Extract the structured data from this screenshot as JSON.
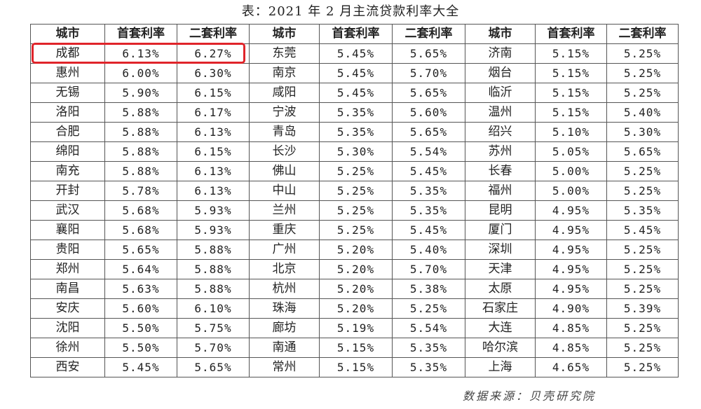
{
  "title": "表：2021 年 2 月主流贷款利率大全",
  "headers": [
    "城市",
    "首套利率",
    "二套利率",
    "城市",
    "首套利率",
    "二套利率",
    "城市",
    "首套利率",
    "二套利率"
  ],
  "rows": [
    [
      "成都",
      "6.13%",
      "6.27%",
      "东莞",
      "5.45%",
      "5.65%",
      "济南",
      "5.15%",
      "5.25%"
    ],
    [
      "惠州",
      "6.00%",
      "6.30%",
      "南京",
      "5.45%",
      "5.70%",
      "烟台",
      "5.15%",
      "5.25%"
    ],
    [
      "无锡",
      "5.90%",
      "6.15%",
      "咸阳",
      "5.45%",
      "5.65%",
      "临沂",
      "5.15%",
      "5.25%"
    ],
    [
      "洛阳",
      "5.88%",
      "6.17%",
      "宁波",
      "5.35%",
      "5.60%",
      "温州",
      "5.15%",
      "5.40%"
    ],
    [
      "合肥",
      "5.88%",
      "6.13%",
      "青岛",
      "5.35%",
      "5.65%",
      "绍兴",
      "5.10%",
      "5.30%"
    ],
    [
      "绵阳",
      "5.88%",
      "6.15%",
      "长沙",
      "5.30%",
      "5.54%",
      "苏州",
      "5.05%",
      "5.65%"
    ],
    [
      "南充",
      "5.88%",
      "6.13%",
      "佛山",
      "5.25%",
      "5.45%",
      "长春",
      "5.00%",
      "5.25%"
    ],
    [
      "开封",
      "5.78%",
      "6.13%",
      "中山",
      "5.25%",
      "5.35%",
      "福州",
      "5.00%",
      "5.25%"
    ],
    [
      "武汉",
      "5.68%",
      "5.93%",
      "兰州",
      "5.25%",
      "5.35%",
      "昆明",
      "4.95%",
      "5.35%"
    ],
    [
      "襄阳",
      "5.68%",
      "5.93%",
      "重庆",
      "5.25%",
      "5.45%",
      "厦门",
      "4.95%",
      "5.45%"
    ],
    [
      "贵阳",
      "5.65%",
      "5.88%",
      "广州",
      "5.20%",
      "5.40%",
      "深圳",
      "4.95%",
      "5.25%"
    ],
    [
      "郑州",
      "5.64%",
      "5.88%",
      "北京",
      "5.20%",
      "5.70%",
      "天津",
      "4.95%",
      "5.25%"
    ],
    [
      "南昌",
      "5.63%",
      "5.88%",
      "杭州",
      "5.20%",
      "5.38%",
      "太原",
      "4.95%",
      "5.25%"
    ],
    [
      "安庆",
      "5.60%",
      "6.10%",
      "珠海",
      "5.20%",
      "5.25%",
      "石家庄",
      "4.90%",
      "5.39%"
    ],
    [
      "沈阳",
      "5.50%",
      "5.75%",
      "廊坊",
      "5.19%",
      "5.54%",
      "大连",
      "4.85%",
      "5.25%"
    ],
    [
      "徐州",
      "5.50%",
      "5.70%",
      "南通",
      "5.15%",
      "5.35%",
      "哈尔滨",
      "4.85%",
      "5.25%"
    ],
    [
      "西安",
      "5.45%",
      "5.65%",
      "常州",
      "5.15%",
      "5.35%",
      "上海",
      "4.65%",
      "5.25%"
    ]
  ],
  "source": "数据来源：贝壳研究院",
  "highlight_color": "#e0242a"
}
